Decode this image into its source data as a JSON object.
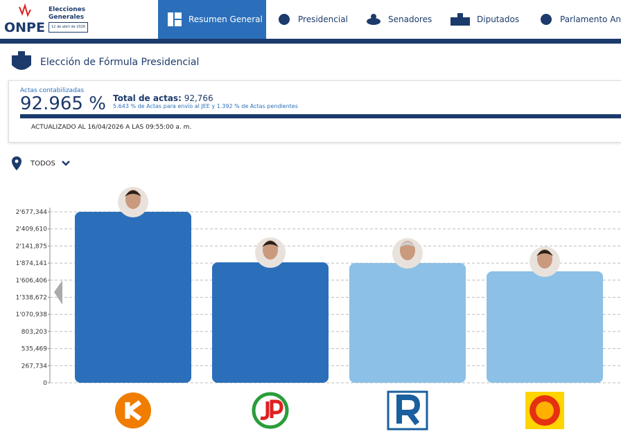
{
  "header": {
    "brand": "ONPE",
    "event_line1": "Elecciones",
    "event_line2": "Generales",
    "event_date": "12 de abril de 2026"
  },
  "nav": [
    "Resumen General",
    "Presidencial",
    "Senadores",
    "Diputados",
    "Parlamento Andino"
  ],
  "page_title": "Elección de Fórmula Presidencial",
  "summary": {
    "counted_label": "Actas contabilizadas",
    "counted_value": "92.965 %",
    "total_label": "Total de actas:",
    "total_value": "92,766",
    "detail": "5.643 % de Actas para envío al JEE y 1.392 % de Actas pendientes",
    "updated": "ACTUALIZADO AL 16/04/2026 A LAS 09:55:00 a. m."
  },
  "filter": "TODOS",
  "chart_data": {
    "type": "bar",
    "categories": [
      null,
      null,
      null,
      null
    ],
    "series": [
      {
        "values": [
          2677344,
          1886000,
          1875000,
          1745000
        ],
        "colors": [
          "#2b6fba",
          "#2b6fba",
          "#8cc0e6",
          "#8cc0e6"
        ]
      }
    ],
    "ylim": [
      0,
      2677344
    ],
    "yticks": [
      0,
      {
        "value": 267734,
        "label": "267,734"
      },
      {
        "value": 535469,
        "label": "535,469"
      },
      {
        "value": 803203,
        "label": "803,203"
      },
      {
        "value": 1070938,
        "label": "1'070,938"
      },
      {
        "value": 1338672,
        "label": "1'338,672"
      },
      {
        "value": 1606406,
        "label": "1'606,406"
      },
      {
        "value": 1874141,
        "label": "1'874,141"
      },
      {
        "value": 2141875,
        "label": "2'141,875"
      },
      {
        "value": 2409610,
        "label": "2'409,610"
      },
      {
        "value": 2677344,
        "label": "2'677,344"
      }
    ],
    "grid": true
  }
}
